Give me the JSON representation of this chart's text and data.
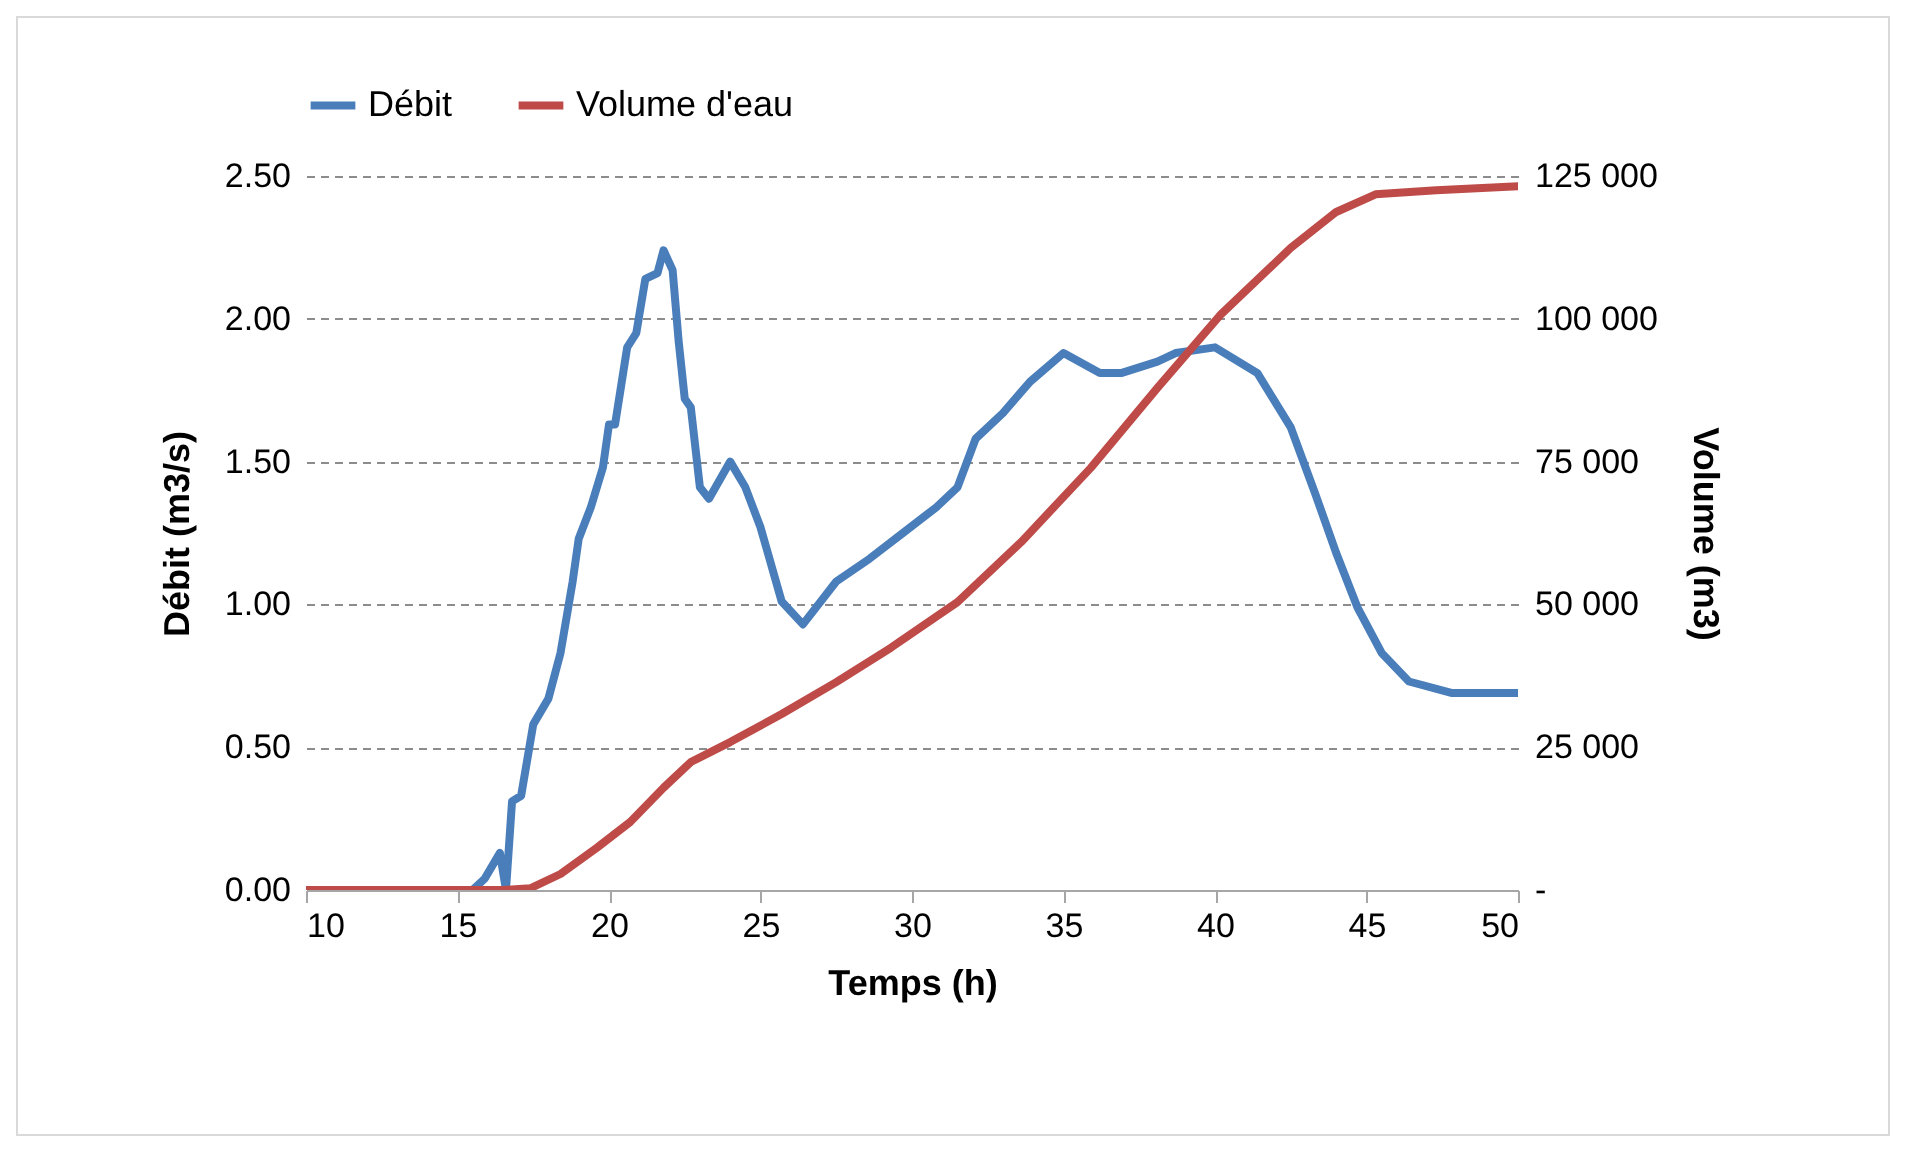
{
  "chart_data": {
    "type": "line",
    "xlabel": "Temps (h)",
    "ylabel": "Débit (m3/s)",
    "y2label": "Volume (m3)",
    "xlim": [
      10,
      50
    ],
    "xticks": [
      10,
      15,
      20,
      25,
      30,
      35,
      40,
      45,
      50
    ],
    "ylim": [
      0,
      2.5
    ],
    "yticks": [
      {
        "value": 0,
        "label": "0.00"
      },
      {
        "value": 0.5,
        "label": "0.50"
      },
      {
        "value": 1,
        "label": "1.00"
      },
      {
        "value": 1.5,
        "label": "1.50"
      },
      {
        "value": 2,
        "label": "2.00"
      },
      {
        "value": 2.5,
        "label": "2.50"
      }
    ],
    "y2lim": [
      0,
      125000
    ],
    "y2ticks": [
      {
        "value": 0,
        "label": "-"
      },
      {
        "value": 25000,
        "label": "25 000"
      },
      {
        "value": 50000,
        "label": "50 000"
      },
      {
        "value": 75000,
        "label": "75 000"
      },
      {
        "value": 100000,
        "label": "100 000"
      },
      {
        "value": 125000,
        "label": "125 000"
      }
    ],
    "grid": "y",
    "legend": "top",
    "line_style": "solid",
    "marker": "none",
    "series": [
      {
        "name": "Débit",
        "color": "#4a7ebb",
        "x": [
          10,
          15.5,
          15.9,
          16.4,
          16.6,
          16.8,
          17.1,
          17.5,
          18.0,
          18.4,
          18.8,
          19.0,
          19.4,
          19.8,
          20.0,
          20.2,
          20.6,
          20.9,
          21.2,
          21.6,
          21.8,
          22.1,
          22.3,
          22.5,
          22.7,
          23.0,
          23.3,
          24.0,
          24.5,
          25.0,
          25.7,
          26.4,
          27.5,
          28.6,
          29.7,
          30.8,
          31.5,
          32.1,
          33.0,
          33.9,
          35.0,
          36.2,
          36.9,
          38.1,
          38.7,
          40.0,
          41.4,
          42.5,
          43.3,
          44.0,
          44.7,
          45.5,
          46.4,
          47.8,
          49.1,
          50
        ],
        "values": [
          0,
          0,
          0.04,
          0.13,
          0,
          0.31,
          0.33,
          0.58,
          0.67,
          0.83,
          1.08,
          1.23,
          1.34,
          1.48,
          1.63,
          1.63,
          1.9,
          1.95,
          2.14,
          2.16,
          2.24,
          2.17,
          1.92,
          1.72,
          1.69,
          1.41,
          1.37,
          1.5,
          1.41,
          1.27,
          1.01,
          0.93,
          1.08,
          1.16,
          1.25,
          1.34,
          1.41,
          1.58,
          1.67,
          1.78,
          1.88,
          1.81,
          1.81,
          1.85,
          1.88,
          1.9,
          1.81,
          1.62,
          1.39,
          1.18,
          0.99,
          0.83,
          0.73,
          0.69,
          0.69,
          0.69
        ]
      },
      {
        "name": "Volume d'eau",
        "color": "#be4b48",
        "axis": "y2",
        "x": [
          10,
          16.5,
          17.4,
          18.4,
          19.6,
          20.7,
          21.8,
          22.7,
          24.0,
          25.7,
          27.5,
          29.3,
          31.5,
          33.6,
          35.9,
          38.1,
          40.2,
          42.5,
          44.0,
          45.3,
          47.3,
          50
        ],
        "values": [
          0,
          0,
          300,
          2800,
          7400,
          11900,
          17900,
          22400,
          25900,
          30800,
          36400,
          42400,
          50400,
          60900,
          73900,
          87900,
          100800,
          112400,
          118700,
          121800,
          122500,
          123200
        ]
      }
    ]
  }
}
